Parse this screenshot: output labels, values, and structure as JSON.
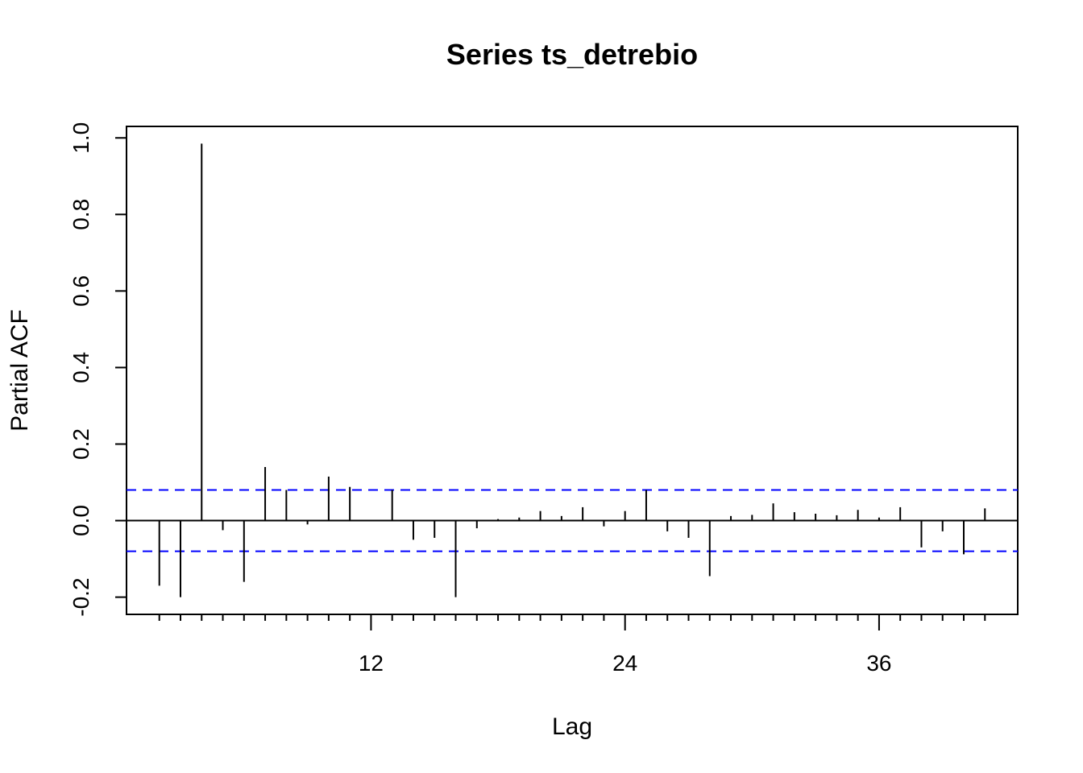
{
  "chart_data": {
    "type": "bar",
    "title": "Series  ts_detrebio",
    "xlabel": "Lag",
    "ylabel": "Partial ACF",
    "xlim": [
      0.45,
      42.55
    ],
    "ylim": [
      -0.245,
      1.03
    ],
    "x_ticks": [
      12,
      24,
      36
    ],
    "x_minor_ticks": [
      2,
      3,
      4,
      5,
      6,
      7,
      8,
      9,
      10,
      11,
      12,
      13,
      14,
      15,
      16,
      17,
      18,
      19,
      20,
      21,
      22,
      23,
      24,
      25,
      26,
      27,
      28,
      29,
      30,
      31,
      32,
      33,
      34,
      35,
      36,
      37,
      38,
      39,
      40,
      41
    ],
    "y_ticks": [
      -0.2,
      0.0,
      0.2,
      0.4,
      0.6,
      0.8,
      1.0
    ],
    "y_tick_labels": [
      "-0.2",
      "0.0",
      "0.2",
      "0.4",
      "0.6",
      "0.8",
      "1.0"
    ],
    "x_tick_labels": [
      "12",
      "24",
      "36"
    ],
    "confidence_limit": 0.08,
    "grid": false,
    "colors": {
      "bars": "#000000",
      "confidence": "#0000ff",
      "zero_line": "#000000"
    },
    "lags": [
      2,
      3,
      4,
      5,
      6,
      7,
      8,
      9,
      10,
      11,
      12,
      13,
      14,
      15,
      16,
      17,
      18,
      19,
      20,
      21,
      22,
      23,
      24,
      25,
      26,
      27,
      28,
      29,
      30,
      31,
      32,
      33,
      34,
      35,
      36,
      37,
      38,
      39,
      40,
      41
    ],
    "values": [
      -0.17,
      -0.2,
      0.985,
      -0.025,
      -0.16,
      0.14,
      0.08,
      -0.01,
      0.115,
      0.088,
      0.0,
      0.08,
      -0.05,
      -0.045,
      -0.2,
      -0.02,
      0.004,
      0.008,
      0.025,
      0.012,
      0.035,
      -0.015,
      0.025,
      0.08,
      -0.028,
      -0.045,
      -0.145,
      0.012,
      0.015,
      0.045,
      0.022,
      0.018,
      0.014,
      0.028,
      0.008,
      0.035,
      -0.07,
      -0.028,
      -0.088,
      0.032
    ]
  }
}
